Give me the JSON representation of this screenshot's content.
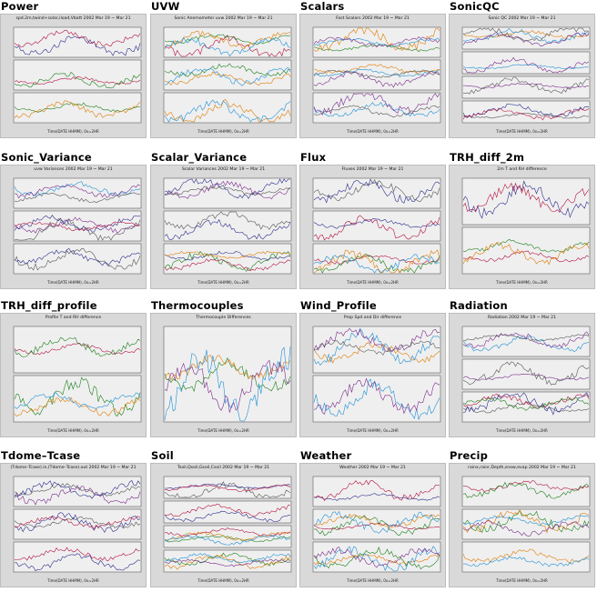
{
  "panels": [
    {
      "title": "Power",
      "subtitle": "spd.2m,twind+solar,iload,Vbatt 2002 Mar 19 ~ Mar 21",
      "rows": 3
    },
    {
      "title": "UVW",
      "subtitle": "Sonic Anemometer uvw 2002 Mar 19 ~ Mar 21",
      "rows": 3
    },
    {
      "title": "Scalars",
      "subtitle": "Fast Scalars 2002 Mar 19 ~ Mar 21",
      "rows": 3
    },
    {
      "title": "SonicQC",
      "subtitle": "Sonic QC 2002 Mar 19 ~ Mar 21",
      "rows": 4
    },
    {
      "title": "Sonic_Variance",
      "subtitle": "uvw Variances 2002 Mar 19 ~ Mar 21",
      "rows": 3
    },
    {
      "title": "Scalar_Variance",
      "subtitle": "Scalar Variances 2002 Mar 19 ~ Mar 21",
      "rows": 3
    },
    {
      "title": "Flux",
      "subtitle": "Fluxes 2002 Mar 19 ~ Mar 21",
      "rows": 3
    },
    {
      "title": "TRH_diff_2m",
      "subtitle": "2m T and RH difference",
      "rows": 2
    },
    {
      "title": "TRH_diff_profile",
      "subtitle": "Profile T and RH difference",
      "rows": 2
    },
    {
      "title": "Thermocouples",
      "subtitle": "Thermocouple Differences",
      "rows": 1
    },
    {
      "title": "Wind_Profile",
      "subtitle": "Prop Spd and Dir difference",
      "rows": 2
    },
    {
      "title": "Radiation",
      "subtitle": "Radiation 2002 Mar 19 ~ Mar 21",
      "rows": 3
    },
    {
      "title": "Tdome–Tcase",
      "subtitle": "(Tdome–Tcase).in,(Tdome–Tcase).out 2002 Mar 19 ~ Mar 21",
      "rows": 3
    },
    {
      "title": "Soil",
      "subtitle": "Tsoil,Qsoil,Gsoil,Csoil 2002 Mar 19 ~ Mar 21",
      "rows": 4
    },
    {
      "title": "Weather",
      "subtitle": "Weather 2002 Mar 19 ~ Mar 21",
      "rows": 3
    },
    {
      "title": "Precip",
      "subtitle": "rainx,rainr,Depth,snow,evap 2002 Mar 19 ~ Mar 21",
      "rows": 3
    }
  ],
  "footer": "Time(DATE HHMM), 0x=2HR"
}
